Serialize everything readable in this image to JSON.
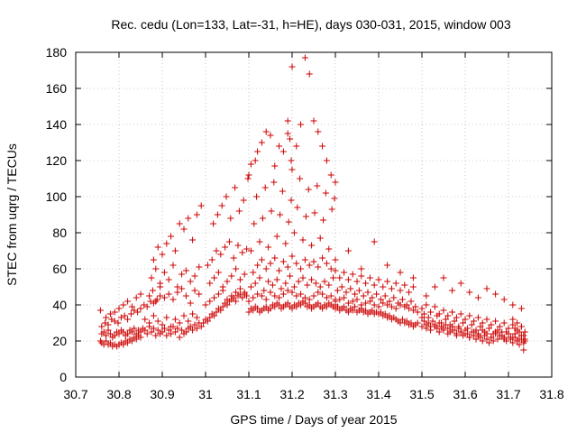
{
  "chart_data": {
    "type": "scatter",
    "title": "Rec. cedu (Lon=133, Lat=-31, h=HE), days 030-031, 2015, window 003",
    "xlabel": "GPS time / Days of year 2015",
    "ylabel": "STEC from uqrg / TECUs",
    "xlim": [
      30.7,
      31.8
    ],
    "ylim": [
      0,
      180
    ],
    "xticks": [
      "30.7",
      "30.8",
      "30.9",
      "31",
      "31.1",
      "31.2",
      "31.3",
      "31.4",
      "31.5",
      "31.6",
      "31.7",
      "31.8"
    ],
    "yticks": [
      "0",
      "20",
      "40",
      "60",
      "80",
      "100",
      "120",
      "140",
      "160",
      "180"
    ],
    "grid": true,
    "marker": "+",
    "color": "#cc0000",
    "series": [
      {
        "name": "STEC",
        "x": [
          30.757,
          30.76,
          30.765,
          30.77,
          30.775,
          30.78,
          30.785,
          30.79,
          30.795,
          30.8,
          30.805,
          30.81,
          30.815,
          30.82,
          30.825,
          30.83,
          30.835,
          30.84,
          30.845,
          30.85,
          30.76,
          30.765,
          30.77,
          30.775,
          30.78,
          30.785,
          30.79,
          30.795,
          30.8,
          30.805,
          30.81,
          30.815,
          30.82,
          30.825,
          30.83,
          30.835,
          30.84,
          30.845,
          30.85,
          30.855,
          30.76,
          30.768,
          30.775,
          30.783,
          30.79,
          30.798,
          30.805,
          30.813,
          30.82,
          30.828,
          30.835,
          30.843,
          30.85,
          30.858,
          30.865,
          30.873,
          30.88,
          30.888,
          30.895,
          30.757,
          30.77,
          30.78,
          30.79,
          30.8,
          30.81,
          30.82,
          30.83,
          30.84,
          30.85,
          30.86,
          30.865,
          30.87,
          30.875,
          30.88,
          30.885,
          30.89,
          30.895,
          30.9,
          30.905,
          30.91,
          30.915,
          30.92,
          30.925,
          30.93,
          30.935,
          30.94,
          30.945,
          30.95,
          30.955,
          30.96,
          30.965,
          30.97,
          30.975,
          30.98,
          30.985,
          30.86,
          30.87,
          30.88,
          30.89,
          30.9,
          30.91,
          30.92,
          30.93,
          30.94,
          30.95,
          30.96,
          30.97,
          30.98,
          30.87,
          30.878,
          30.885,
          30.895,
          30.905,
          30.915,
          30.925,
          30.935,
          30.945,
          30.955,
          30.965,
          30.975,
          30.985,
          30.875,
          30.885,
          30.895,
          30.905,
          30.915,
          30.925,
          30.935,
          30.945,
          30.955,
          30.965,
          30.975,
          30.985,
          30.88,
          30.89,
          30.9,
          30.91,
          30.92,
          30.93,
          30.94,
          30.95,
          30.96,
          30.97,
          30.98,
          30.99,
          30.99,
          30.995,
          31.0,
          31.005,
          31.01,
          31.015,
          31.02,
          31.025,
          31.03,
          31.035,
          31.04,
          31.045,
          31.05,
          31.055,
          31.06,
          31.065,
          31.07,
          31.075,
          31.08,
          31.085,
          31.09,
          31.095,
          31.0,
          31.01,
          31.02,
          31.03,
          31.04,
          31.05,
          31.06,
          31.07,
          31.08,
          31.09,
          31.01,
          31.02,
          31.03,
          31.04,
          31.05,
          31.06,
          31.07,
          31.08,
          31.09,
          31.005,
          31.015,
          31.025,
          31.035,
          31.045,
          31.055,
          31.065,
          31.075,
          31.085,
          31.095,
          31.018,
          31.028,
          31.038,
          31.048,
          31.058,
          31.068,
          31.078,
          31.088,
          31.098,
          31.1,
          31.105,
          31.11,
          31.115,
          31.12,
          31.125,
          31.13,
          31.135,
          31.14,
          31.145,
          31.15,
          31.155,
          31.16,
          31.165,
          31.17,
          31.175,
          31.18,
          31.185,
          31.19,
          31.195,
          31.2,
          31.205,
          31.21,
          31.215,
          31.22,
          31.225,
          31.23,
          31.235,
          31.24,
          31.245,
          31.25,
          31.255,
          31.26,
          31.265,
          31.27,
          31.275,
          31.28,
          31.285,
          31.29,
          31.295,
          31.3,
          31.1,
          31.11,
          31.12,
          31.13,
          31.14,
          31.15,
          31.16,
          31.17,
          31.18,
          31.19,
          31.2,
          31.21,
          31.22,
          31.23,
          31.24,
          31.25,
          31.26,
          31.27,
          31.28,
          31.29,
          31.3,
          31.105,
          31.115,
          31.125,
          31.135,
          31.145,
          31.155,
          31.165,
          31.175,
          31.185,
          31.195,
          31.205,
          31.215,
          31.225,
          31.235,
          31.245,
          31.255,
          31.265,
          31.275,
          31.285,
          31.295,
          31.11,
          31.12,
          31.13,
          31.14,
          31.15,
          31.16,
          31.17,
          31.18,
          31.19,
          31.2,
          31.21,
          31.22,
          31.23,
          31.24,
          31.25,
          31.26,
          31.27,
          31.28,
          31.29,
          31.3,
          31.105,
          31.125,
          31.145,
          31.165,
          31.185,
          31.205,
          31.225,
          31.245,
          31.265,
          31.285,
          31.112,
          31.132,
          31.152,
          31.172,
          31.192,
          31.212,
          31.232,
          31.252,
          31.272,
          31.292,
          31.118,
          31.138,
          31.158,
          31.178,
          31.198,
          31.218,
          31.238,
          31.258,
          31.278,
          31.298,
          31.195,
          31.198,
          31.19,
          31.2,
          31.1,
          31.105,
          31.115,
          31.12,
          31.13,
          31.14,
          31.15,
          31.16,
          31.17,
          31.18,
          31.19,
          31.2,
          31.21,
          31.22,
          31.23,
          31.24,
          31.25,
          31.26,
          31.27,
          31.28,
          31.29,
          31.3,
          31.3,
          31.305,
          31.31,
          31.315,
          31.32,
          31.325,
          31.33,
          31.335,
          31.34,
          31.345,
          31.35,
          31.355,
          31.36,
          31.365,
          31.37,
          31.375,
          31.38,
          31.385,
          31.39,
          31.395,
          31.4,
          31.405,
          31.41,
          31.415,
          31.42,
          31.425,
          31.43,
          31.435,
          31.44,
          31.445,
          31.45,
          31.455,
          31.46,
          31.465,
          31.47,
          31.475,
          31.48,
          31.485,
          31.49,
          31.3,
          31.31,
          31.32,
          31.33,
          31.34,
          31.35,
          31.36,
          31.37,
          31.38,
          31.39,
          31.4,
          31.41,
          31.42,
          31.43,
          31.44,
          31.45,
          31.46,
          31.47,
          31.48,
          31.49,
          31.305,
          31.315,
          31.325,
          31.335,
          31.345,
          31.355,
          31.365,
          31.375,
          31.385,
          31.395,
          31.405,
          31.415,
          31.425,
          31.435,
          31.445,
          31.455,
          31.465,
          31.475,
          31.485,
          31.31,
          31.32,
          31.33,
          31.34,
          31.35,
          31.36,
          31.37,
          31.38,
          31.39,
          31.4,
          31.41,
          31.42,
          31.43,
          31.44,
          31.45,
          31.46,
          31.47,
          31.48,
          31.3,
          31.33,
          31.36,
          31.39,
          31.42,
          31.45,
          31.48,
          31.5,
          31.505,
          31.51,
          31.515,
          31.52,
          31.525,
          31.53,
          31.535,
          31.54,
          31.545,
          31.55,
          31.555,
          31.56,
          31.565,
          31.57,
          31.575,
          31.58,
          31.585,
          31.59,
          31.595,
          31.6,
          31.605,
          31.61,
          31.615,
          31.62,
          31.625,
          31.63,
          31.635,
          31.64,
          31.645,
          31.65,
          31.655,
          31.66,
          31.665,
          31.67,
          31.675,
          31.68,
          31.685,
          31.69,
          31.695,
          31.7,
          31.705,
          31.71,
          31.715,
          31.72,
          31.725,
          31.73,
          31.735,
          31.5,
          31.51,
          31.52,
          31.53,
          31.54,
          31.55,
          31.56,
          31.57,
          31.58,
          31.59,
          31.6,
          31.61,
          31.62,
          31.63,
          31.64,
          31.65,
          31.66,
          31.67,
          31.68,
          31.69,
          31.7,
          31.71,
          31.72,
          31.73,
          31.738,
          31.505,
          31.515,
          31.525,
          31.535,
          31.545,
          31.555,
          31.565,
          31.575,
          31.585,
          31.595,
          31.605,
          31.615,
          31.625,
          31.635,
          31.645,
          31.655,
          31.665,
          31.675,
          31.685,
          31.695,
          31.705,
          31.715,
          31.725,
          31.735,
          31.5,
          31.51,
          31.52,
          31.53,
          31.54,
          31.55,
          31.56,
          31.57,
          31.58,
          31.59,
          31.6,
          31.61,
          31.62,
          31.63,
          31.64,
          31.65,
          31.66,
          31.67,
          31.68,
          31.69,
          31.7,
          31.71,
          31.72,
          31.73,
          31.738,
          31.51,
          31.53,
          31.55,
          31.57,
          31.59,
          31.61,
          31.63,
          31.65,
          31.67,
          31.69,
          31.71,
          31.73,
          31.735,
          31.738,
          31.73,
          31.725,
          31.72,
          31.715,
          31.71
        ],
        "y": [
          20,
          19,
          18,
          20,
          18,
          19,
          17,
          18,
          17,
          18,
          19,
          18,
          20,
          19,
          21,
          20,
          22,
          21,
          23,
          22,
          24,
          25,
          23,
          26,
          24,
          22,
          23,
          25,
          24,
          26,
          25,
          23,
          24,
          26,
          25,
          27,
          24,
          26,
          25,
          27,
          28,
          30,
          29,
          32,
          31,
          30,
          33,
          34,
          32,
          35,
          37,
          36,
          38,
          40,
          39,
          42,
          41,
          43,
          45,
          37,
          33,
          35,
          36,
          38,
          40,
          42,
          39,
          44,
          46,
          26,
          24,
          28,
          25,
          27,
          23,
          26,
          24,
          25,
          27,
          23,
          26,
          24,
          28,
          25,
          27,
          22,
          26,
          24,
          25,
          27,
          28,
          26,
          29,
          27,
          30,
          32,
          30,
          34,
          31,
          29,
          33,
          28,
          32,
          30,
          34,
          31,
          35,
          33,
          45,
          48,
          42,
          50,
          44,
          46,
          43,
          47,
          49,
          45,
          41,
          48,
          46,
          55,
          60,
          52,
          58,
          54,
          62,
          50,
          57,
          59,
          53,
          56,
          61,
          65,
          72,
          68,
          74,
          78,
          70,
          85,
          82,
          88,
          76,
          90,
          95,
          28,
          30,
          32,
          31,
          33,
          35,
          34,
          36,
          38,
          37,
          39,
          41,
          40,
          42,
          43,
          44,
          42,
          45,
          46,
          44,
          47,
          45,
          40,
          42,
          44,
          46,
          48,
          43,
          45,
          47,
          49,
          46,
          52,
          55,
          58,
          50,
          53,
          56,
          60,
          54,
          57,
          62,
          65,
          70,
          68,
          72,
          75,
          66,
          73,
          69,
          71,
          85,
          90,
          95,
          100,
          88,
          105,
          92,
          98,
          110,
          36,
          38,
          37,
          39,
          38,
          36,
          37,
          38,
          39,
          37,
          38,
          40,
          39,
          41,
          40,
          38,
          39,
          40,
          41,
          39,
          38,
          40,
          39,
          41,
          40,
          42,
          41,
          39,
          40,
          38,
          39,
          40,
          41,
          39,
          38,
          40,
          39,
          41,
          40,
          39,
          40,
          42,
          44,
          46,
          45,
          43,
          47,
          45,
          44,
          46,
          48,
          47,
          45,
          46,
          44,
          43,
          45,
          47,
          46,
          44,
          45,
          43,
          50,
          52,
          55,
          48,
          53,
          51,
          54,
          49,
          52,
          56,
          50,
          53,
          55,
          51,
          54,
          52,
          50,
          53,
          51,
          55,
          58,
          62,
          65,
          60,
          63,
          66,
          59,
          64,
          61,
          67,
          63,
          60,
          65,
          62,
          64,
          61,
          66,
          63,
          60,
          59,
          70,
          75,
          72,
          78,
          74,
          80,
          76,
          73,
          77,
          71,
          85,
          88,
          92,
          90,
          86,
          94,
          89,
          91,
          87,
          93,
          100,
          105,
          108,
          103,
          98,
          110,
          104,
          106,
          102,
          99,
          132,
          120,
          142,
          172,
          112,
          118,
          120,
          125,
          130,
          136,
          134,
          117,
          128,
          125,
          135,
          115,
          128,
          140,
          177,
          168,
          142,
          136,
          128,
          120,
          112,
          108,
          38,
          39,
          37,
          38,
          39,
          37,
          36,
          38,
          37,
          39,
          36,
          37,
          38,
          36,
          37,
          35,
          36,
          37,
          35,
          36,
          35,
          36,
          34,
          35,
          33,
          34,
          32,
          33,
          32,
          31,
          30,
          32,
          30,
          31,
          29,
          30,
          28,
          29,
          30,
          42,
          43,
          44,
          41,
          42,
          43,
          40,
          41,
          42,
          40,
          39,
          41,
          40,
          39,
          38,
          40,
          39,
          38,
          37,
          36,
          48,
          50,
          47,
          49,
          46,
          48,
          45,
          47,
          44,
          46,
          43,
          45,
          42,
          44,
          41,
          43,
          40,
          42,
          39,
          55,
          58,
          54,
          57,
          53,
          56,
          52,
          55,
          51,
          54,
          50,
          53,
          49,
          52,
          48,
          51,
          47,
          50,
          65,
          70,
          60,
          75,
          62,
          58,
          55,
          33,
          31,
          29,
          30,
          28,
          31,
          29,
          27,
          30,
          28,
          26,
          29,
          27,
          25,
          28,
          26,
          24,
          27,
          25,
          23,
          26,
          24,
          22,
          25,
          23,
          21,
          24,
          22,
          20,
          23,
          21,
          19,
          22,
          20,
          24,
          21,
          23,
          25,
          22,
          20,
          24,
          21,
          19,
          22,
          20,
          18,
          21,
          19,
          28,
          27,
          26,
          28,
          25,
          27,
          24,
          26,
          23,
          25,
          24,
          22,
          25,
          23,
          26,
          24,
          22,
          25,
          23,
          21,
          24,
          22,
          20,
          23,
          21,
          35,
          33,
          31,
          34,
          30,
          32,
          29,
          31,
          28,
          30,
          27,
          29,
          26,
          28,
          25,
          27,
          24,
          26,
          23,
          25,
          22,
          24,
          21,
          23,
          38,
          40,
          36,
          39,
          35,
          37,
          34,
          36,
          33,
          35,
          32,
          34,
          31,
          33,
          30,
          32,
          29,
          31,
          28,
          30,
          27,
          29,
          26,
          28,
          25,
          45,
          50,
          55,
          48,
          52,
          47,
          44,
          49,
          46,
          43,
          40,
          38,
          15,
          20,
          28,
          25,
          30,
          27,
          32
        ]
      }
    ]
  }
}
